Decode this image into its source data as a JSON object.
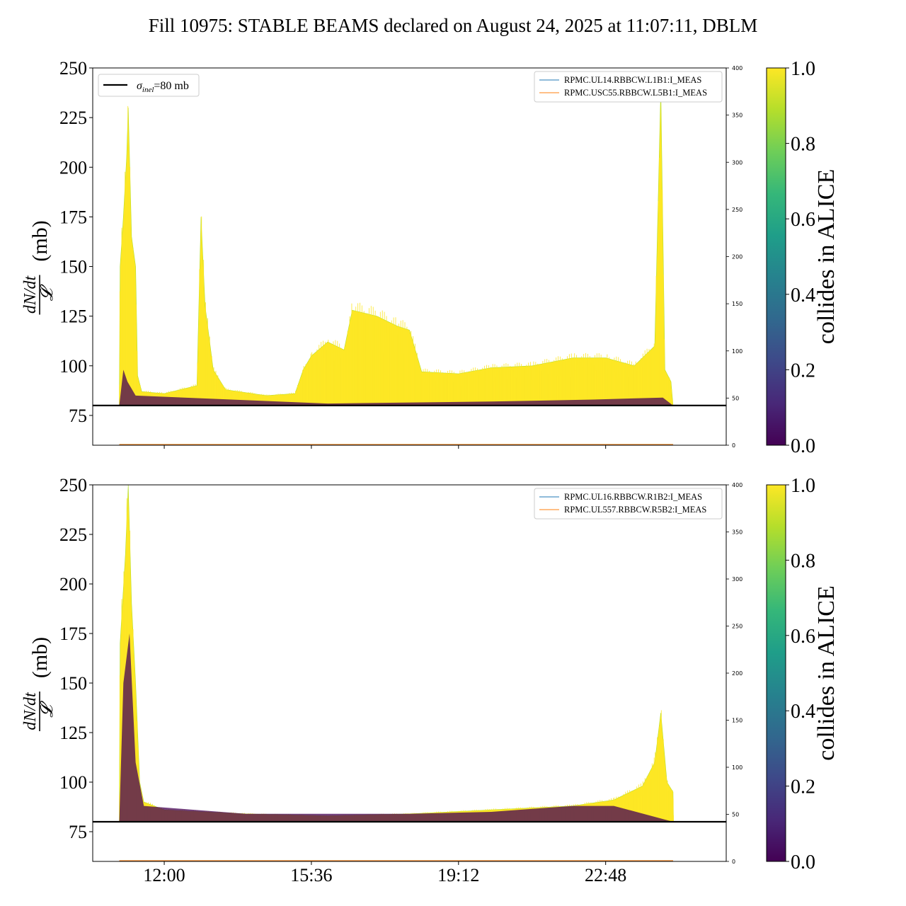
{
  "title": "Fill 10975: STABLE BEAMS declared on August 24, 2025 at 11:07:11, DBLM",
  "colors": {
    "axis": "#000000",
    "sigma_line": "#000000",
    "blm1": "#1f77b4",
    "blm2": "#ff7f0e",
    "viridis": [
      "#440154",
      "#482878",
      "#3e4989",
      "#31688e",
      "#26828e",
      "#1f9e89",
      "#35b779",
      "#6ece58",
      "#b5de2b",
      "#fde725"
    ]
  },
  "chart_data": [
    {
      "type": "area",
      "ylabel_num": "dN/dt",
      "ylabel_den": "𝓛",
      "ylabel_unit": "(mb)",
      "ylim": [
        60,
        250
      ],
      "yticks": [
        75,
        100,
        125,
        150,
        175,
        200,
        225,
        250
      ],
      "xlim_hours": [
        10.25,
        25.75
      ],
      "xticks": [
        "12:00",
        "15:36",
        "19:12",
        "22:48"
      ],
      "xtick_hours": [
        12.0,
        15.6,
        19.2,
        22.8
      ],
      "show_xtick_labels": false,
      "y2lim": [
        0,
        400
      ],
      "y2ticks": [
        0,
        50,
        100,
        150,
        200,
        250,
        300,
        350,
        400
      ],
      "sigma_inel_mb": 80,
      "sigma_legend": {
        "label": "σinel=80 mb",
        "sym": "σ",
        "sub": "inel",
        "rest": "=80 mb"
      },
      "show_sigma_legend": true,
      "legend": [
        "RPMC.UL14.RBBCW.L1B1:I_MEAS",
        "RPMC.USC55.RBBCW.L5B1:I_MEAS"
      ],
      "colorbar": {
        "label": "collides in ALICE",
        "ticks": [
          "0.0",
          "0.2",
          "0.4",
          "0.6",
          "0.8",
          "1.0"
        ],
        "range": [
          0,
          1
        ]
      },
      "envelope": [
        {
          "t": 10.9,
          "base": 80,
          "top": 80
        },
        {
          "t": 10.92,
          "base": 80,
          "top": 150
        },
        {
          "t": 11.0,
          "base": 80,
          "top": 175
        },
        {
          "t": 11.08,
          "base": 80,
          "top": 205
        },
        {
          "t": 11.12,
          "base": 80,
          "top": 230
        },
        {
          "t": 11.2,
          "base": 80,
          "top": 165
        },
        {
          "t": 11.3,
          "base": 80,
          "top": 150
        },
        {
          "t": 11.35,
          "base": 80,
          "top": 95
        },
        {
          "t": 11.45,
          "base": 80,
          "top": 87
        },
        {
          "t": 12.0,
          "base": 80,
          "top": 86
        },
        {
          "t": 12.8,
          "base": 80,
          "top": 90
        },
        {
          "t": 12.9,
          "base": 80,
          "top": 175
        },
        {
          "t": 13.0,
          "base": 80,
          "top": 130
        },
        {
          "t": 13.2,
          "base": 80,
          "top": 98
        },
        {
          "t": 13.5,
          "base": 80,
          "top": 88
        },
        {
          "t": 14.5,
          "base": 80,
          "top": 85
        },
        {
          "t": 15.2,
          "base": 80,
          "top": 86
        },
        {
          "t": 15.4,
          "base": 80,
          "top": 98
        },
        {
          "t": 15.6,
          "base": 80,
          "top": 105
        },
        {
          "t": 16.0,
          "base": 80,
          "top": 112
        },
        {
          "t": 16.4,
          "base": 80,
          "top": 108
        },
        {
          "t": 16.6,
          "base": 80,
          "top": 128
        },
        {
          "t": 17.2,
          "base": 80,
          "top": 125
        },
        {
          "t": 17.7,
          "base": 80,
          "top": 120
        },
        {
          "t": 18.0,
          "base": 80,
          "top": 118
        },
        {
          "t": 18.3,
          "base": 80,
          "top": 97
        },
        {
          "t": 19.2,
          "base": 80,
          "top": 96
        },
        {
          "t": 20.0,
          "base": 80,
          "top": 99
        },
        {
          "t": 21.0,
          "base": 80,
          "top": 100
        },
        {
          "t": 22.0,
          "base": 80,
          "top": 104
        },
        {
          "t": 22.8,
          "base": 80,
          "top": 104
        },
        {
          "t": 23.5,
          "base": 80,
          "top": 100
        },
        {
          "t": 24.0,
          "base": 80,
          "top": 110
        },
        {
          "t": 24.15,
          "base": 80,
          "top": 240
        },
        {
          "t": 24.25,
          "base": 80,
          "top": 98
        },
        {
          "t": 24.4,
          "base": 80,
          "top": 92
        },
        {
          "t": 24.45,
          "base": 80,
          "top": 80
        }
      ],
      "dark_band": [
        {
          "t": 10.9,
          "v": 80
        },
        {
          "t": 11.0,
          "v": 98
        },
        {
          "t": 11.1,
          "v": 92
        },
        {
          "t": 11.3,
          "v": 85
        },
        {
          "t": 16.0,
          "v": 81
        },
        {
          "t": 20.0,
          "v": 82
        },
        {
          "t": 22.5,
          "v": 83
        },
        {
          "t": 24.2,
          "v": 84
        },
        {
          "t": 24.45,
          "v": 80
        }
      ]
    },
    {
      "type": "area",
      "ylabel_num": "dN/dt",
      "ylabel_den": "𝓛",
      "ylabel_unit": "(mb)",
      "ylim": [
        60,
        250
      ],
      "yticks": [
        75,
        100,
        125,
        150,
        175,
        200,
        225,
        250
      ],
      "xlim_hours": [
        10.25,
        25.75
      ],
      "xticks": [
        "12:00",
        "15:36",
        "19:12",
        "22:48"
      ],
      "xtick_hours": [
        12.0,
        15.6,
        19.2,
        22.8
      ],
      "show_xtick_labels": true,
      "y2lim": [
        0,
        400
      ],
      "y2ticks": [
        0,
        50,
        100,
        150,
        200,
        250,
        300,
        350,
        400
      ],
      "sigma_inel_mb": 80,
      "show_sigma_legend": false,
      "legend": [
        "RPMC.UL16.RBBCW.R1B2:I_MEAS",
        "RPMC.UL557.RBBCW.R5B2:I_MEAS"
      ],
      "colorbar": {
        "label": "collides in ALICE",
        "ticks": [
          "0.0",
          "0.2",
          "0.4",
          "0.6",
          "0.8",
          "1.0"
        ],
        "range": [
          0,
          1
        ]
      },
      "envelope": [
        {
          "t": 10.9,
          "base": 80,
          "top": 80
        },
        {
          "t": 10.92,
          "base": 80,
          "top": 170
        },
        {
          "t": 11.05,
          "base": 80,
          "top": 215
        },
        {
          "t": 11.12,
          "base": 80,
          "top": 250
        },
        {
          "t": 11.2,
          "base": 80,
          "top": 190
        },
        {
          "t": 11.3,
          "base": 80,
          "top": 150
        },
        {
          "t": 11.4,
          "base": 80,
          "top": 100
        },
        {
          "t": 11.5,
          "base": 80,
          "top": 90
        },
        {
          "t": 12.0,
          "base": 80,
          "top": 86
        },
        {
          "t": 14.0,
          "base": 80,
          "top": 84
        },
        {
          "t": 16.0,
          "base": 80,
          "top": 83
        },
        {
          "t": 18.0,
          "base": 80,
          "top": 84
        },
        {
          "t": 20.0,
          "base": 80,
          "top": 86
        },
        {
          "t": 22.0,
          "base": 80,
          "top": 88
        },
        {
          "t": 23.0,
          "base": 80,
          "top": 91
        },
        {
          "t": 23.7,
          "base": 80,
          "top": 98
        },
        {
          "t": 24.0,
          "base": 80,
          "top": 110
        },
        {
          "t": 24.15,
          "base": 80,
          "top": 135
        },
        {
          "t": 24.3,
          "base": 80,
          "top": 100
        },
        {
          "t": 24.45,
          "base": 80,
          "top": 95
        },
        {
          "t": 24.46,
          "base": 80,
          "top": 80
        }
      ],
      "dark_band": [
        {
          "t": 10.9,
          "v": 80
        },
        {
          "t": 11.0,
          "v": 150
        },
        {
          "t": 11.15,
          "v": 175
        },
        {
          "t": 11.3,
          "v": 110
        },
        {
          "t": 11.5,
          "v": 88
        },
        {
          "t": 14.0,
          "v": 84
        },
        {
          "t": 18.0,
          "v": 84
        },
        {
          "t": 20.0,
          "v": 85
        },
        {
          "t": 22.0,
          "v": 88
        },
        {
          "t": 23.0,
          "v": 88
        },
        {
          "t": 24.45,
          "v": 80
        }
      ]
    }
  ]
}
